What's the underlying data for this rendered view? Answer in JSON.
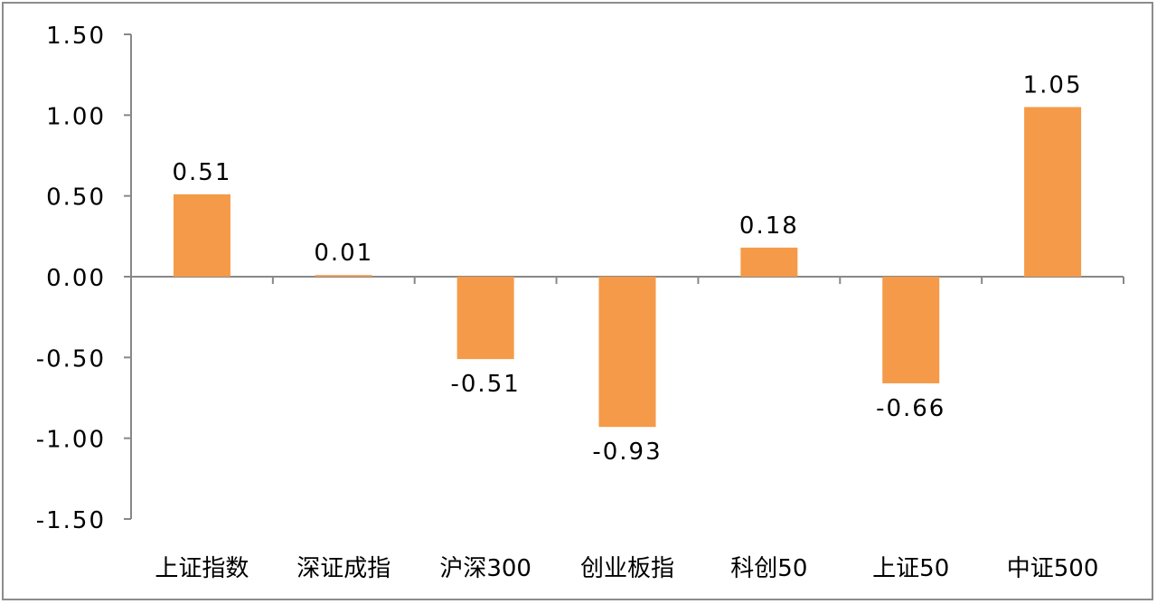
{
  "chart_data": {
    "type": "bar",
    "categories": [
      "上证指数",
      "深证成指",
      "沪深300",
      "创业板指",
      "科创50",
      "上证50",
      "中证500"
    ],
    "values": [
      0.51,
      0.01,
      -0.51,
      -0.93,
      0.18,
      -0.66,
      1.05
    ],
    "value_labels": [
      "0.51",
      "0.01",
      "-0.51",
      "-0.93",
      "0.18",
      "-0.66",
      "1.05"
    ],
    "ylim": [
      -1.5,
      1.5
    ],
    "yticks": [
      1.5,
      1.0,
      0.5,
      0.0,
      -0.5,
      -1.0,
      -1.5
    ],
    "ytick_labels": [
      "1.50",
      "1.00",
      "0.50",
      "0.00",
      "-0.50",
      "-1.00",
      "-1.50"
    ],
    "title": "",
    "xlabel": "",
    "ylabel": "",
    "grid": false,
    "legend": false,
    "bar_color": "#F59A48",
    "axis_color": "#888888"
  }
}
